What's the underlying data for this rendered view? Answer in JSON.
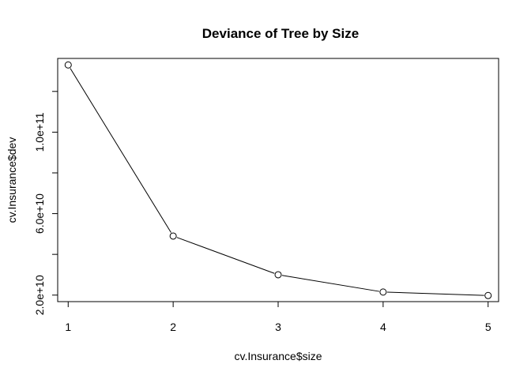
{
  "chart_data": {
    "type": "line",
    "title": "Deviance of Tree by Size",
    "xlabel": "cv.Insurance$size",
    "ylabel": "cv.Insurance$dev",
    "x": [
      1,
      2,
      3,
      4,
      5
    ],
    "series": [
      {
        "values": [
          133000000000,
          49000000000,
          30000000000,
          21500000000,
          19800000000
        ]
      }
    ],
    "xlim": [
      0.9,
      5.1
    ],
    "ylim": [
      16800000000,
      136200000000
    ],
    "x_ticks": [
      1,
      2,
      3,
      4,
      5
    ],
    "x_tick_labels": [
      "1",
      "2",
      "3",
      "4",
      "5"
    ],
    "y_ticks": [
      20000000000,
      40000000000,
      60000000000,
      80000000000,
      100000000000,
      120000000000
    ],
    "y_tick_labels": [
      "2.0e+10",
      "",
      "6.0e+10",
      "",
      "1.0e+11",
      ""
    ],
    "marker": "open-circle",
    "line_color": "#000000",
    "grid": false,
    "legend": "none"
  }
}
